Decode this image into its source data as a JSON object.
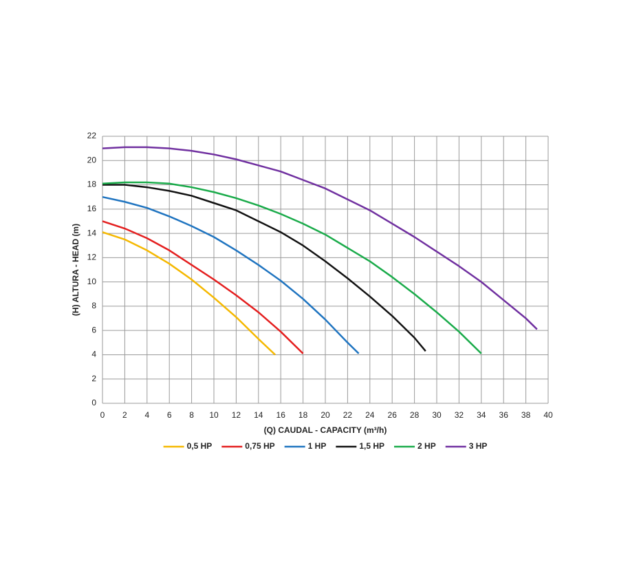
{
  "chart_data": {
    "type": "line",
    "x_label": "(Q)  CAUDAL - CAPACITY (m³/h)",
    "y_label": "(H)  ALTURA - HEAD (m)",
    "xlim": [
      0,
      40
    ],
    "ylim": [
      0,
      22
    ],
    "xticks": [
      0,
      2,
      4,
      6,
      8,
      10,
      12,
      14,
      16,
      18,
      20,
      22,
      24,
      26,
      28,
      30,
      32,
      34,
      36,
      38,
      40
    ],
    "yticks": [
      0,
      2,
      4,
      6,
      8,
      10,
      12,
      14,
      16,
      18,
      20,
      22
    ],
    "grid": true,
    "legend": "bottom",
    "series": [
      {
        "name": "0,5 HP",
        "color": "#f5b800",
        "x": [
          0,
          2,
          4,
          6,
          8,
          10,
          12,
          14,
          15.5
        ],
        "values": [
          14.1,
          13.5,
          12.6,
          11.5,
          10.2,
          8.7,
          7.1,
          5.3,
          4.0
        ]
      },
      {
        "name": "0,75 HP",
        "color": "#e41e1e",
        "x": [
          0,
          2,
          4,
          6,
          8,
          10,
          12,
          14,
          16,
          18
        ],
        "values": [
          15,
          14.4,
          13.6,
          12.6,
          11.4,
          10.2,
          8.9,
          7.5,
          5.9,
          4.1
        ]
      },
      {
        "name": "1 HP",
        "color": "#1f74c0",
        "x": [
          0,
          2,
          4,
          6,
          8,
          10,
          12,
          14,
          16,
          18,
          20,
          22,
          23
        ],
        "values": [
          17,
          16.6,
          16.1,
          15.4,
          14.6,
          13.7,
          12.6,
          11.4,
          10.1,
          8.6,
          6.9,
          5.0,
          4.1
        ]
      },
      {
        "name": "1,5 HP",
        "color": "#111111",
        "x": [
          0,
          2,
          4,
          6,
          8,
          10,
          12,
          14,
          16,
          18,
          20,
          22,
          24,
          26,
          28,
          29
        ],
        "values": [
          18,
          18,
          17.8,
          17.5,
          17.1,
          16.5,
          15.9,
          15.0,
          14.1,
          13.0,
          11.7,
          10.3,
          8.8,
          7.2,
          5.4,
          4.3
        ]
      },
      {
        "name": "2 HP",
        "color": "#1aab4a",
        "x": [
          0,
          2,
          4,
          6,
          8,
          10,
          12,
          14,
          16,
          18,
          20,
          22,
          24,
          26,
          28,
          30,
          32,
          34
        ],
        "values": [
          18.1,
          18.2,
          18.2,
          18.1,
          17.8,
          17.4,
          16.9,
          16.3,
          15.6,
          14.8,
          13.9,
          12.8,
          11.7,
          10.4,
          9.0,
          7.5,
          5.9,
          4.1
        ]
      },
      {
        "name": "3 HP",
        "color": "#7030a0",
        "x": [
          0,
          2,
          4,
          6,
          8,
          10,
          12,
          14,
          16,
          18,
          20,
          22,
          24,
          26,
          28,
          30,
          32,
          34,
          36,
          38,
          39
        ],
        "values": [
          21,
          21.1,
          21.1,
          21,
          20.8,
          20.5,
          20.1,
          19.6,
          19.1,
          18.4,
          17.7,
          16.8,
          15.9,
          14.8,
          13.7,
          12.5,
          11.3,
          10.0,
          8.5,
          7.0,
          6.1
        ]
      }
    ]
  }
}
